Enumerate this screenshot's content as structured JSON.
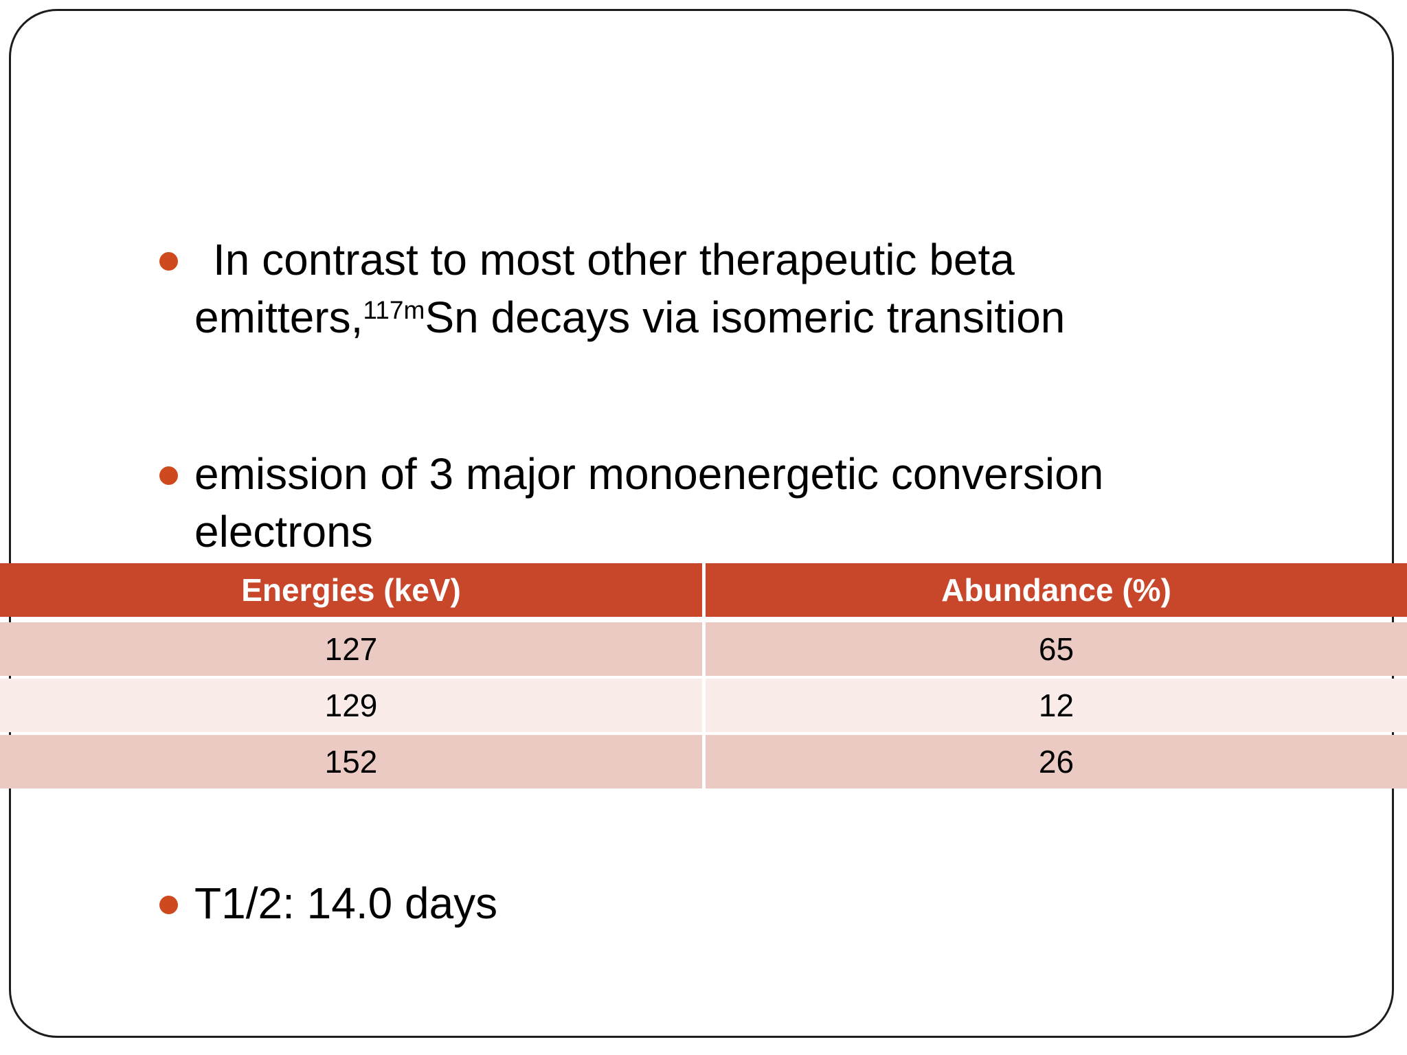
{
  "slide": {
    "bullet1": {
      "line1": "In contrast to most other therapeutic beta",
      "line2_pre": "emitters,",
      "line2_sup": "117m",
      "line2_post": "Sn decays via isomeric transition"
    },
    "bullet2": {
      "line1": "emission of 3 major monoenergetic conversion",
      "line2": "electrons"
    },
    "bullet3": {
      "text": "T1/2: 14.0 days"
    }
  },
  "table": {
    "headers": [
      "Energies (keV)",
      "Abundance (%)"
    ],
    "rows": [
      [
        "127",
        "65"
      ],
      [
        "129",
        "12"
      ],
      [
        "152",
        "26"
      ]
    ]
  },
  "colors": {
    "accent": "#C8472B",
    "bullet_dot": "#CE4A1E",
    "row_dark": "#EBCAC4",
    "row_light": "#F9ECE9",
    "frame_border": "#1D1D1D",
    "header_text": "#FFFFFF",
    "body_text": "#000000"
  }
}
